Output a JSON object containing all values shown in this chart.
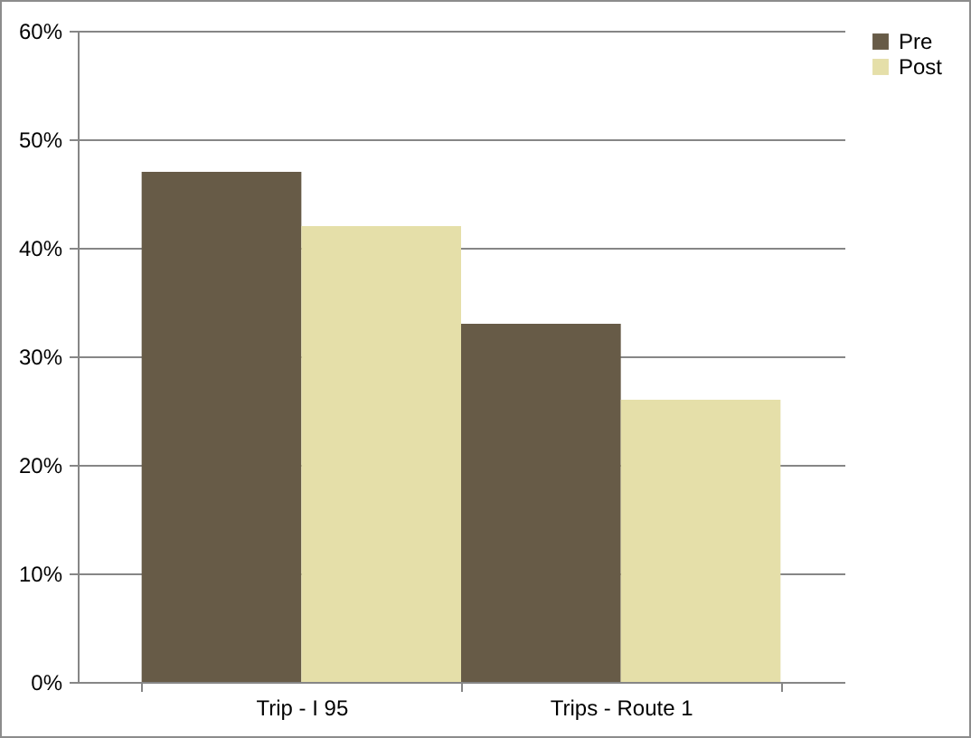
{
  "chart_data": {
    "type": "bar",
    "categories": [
      "Trip - I 95",
      "Trips - Route 1"
    ],
    "series": [
      {
        "name": "Pre",
        "color": "#675b47",
        "values": [
          47,
          33
        ]
      },
      {
        "name": "Post",
        "color": "#e5dfa9",
        "values": [
          42,
          26
        ]
      }
    ],
    "ylim": [
      0,
      60
    ],
    "yticks": [
      {
        "value": 0,
        "label": "0%"
      },
      {
        "value": 10,
        "label": "10%"
      },
      {
        "value": 20,
        "label": "20%"
      },
      {
        "value": 30,
        "label": "30%"
      },
      {
        "value": 40,
        "label": "40%"
      },
      {
        "value": 50,
        "label": "50%"
      },
      {
        "value": 60,
        "label": "60%"
      }
    ],
    "grid": "y",
    "legend": "right"
  }
}
